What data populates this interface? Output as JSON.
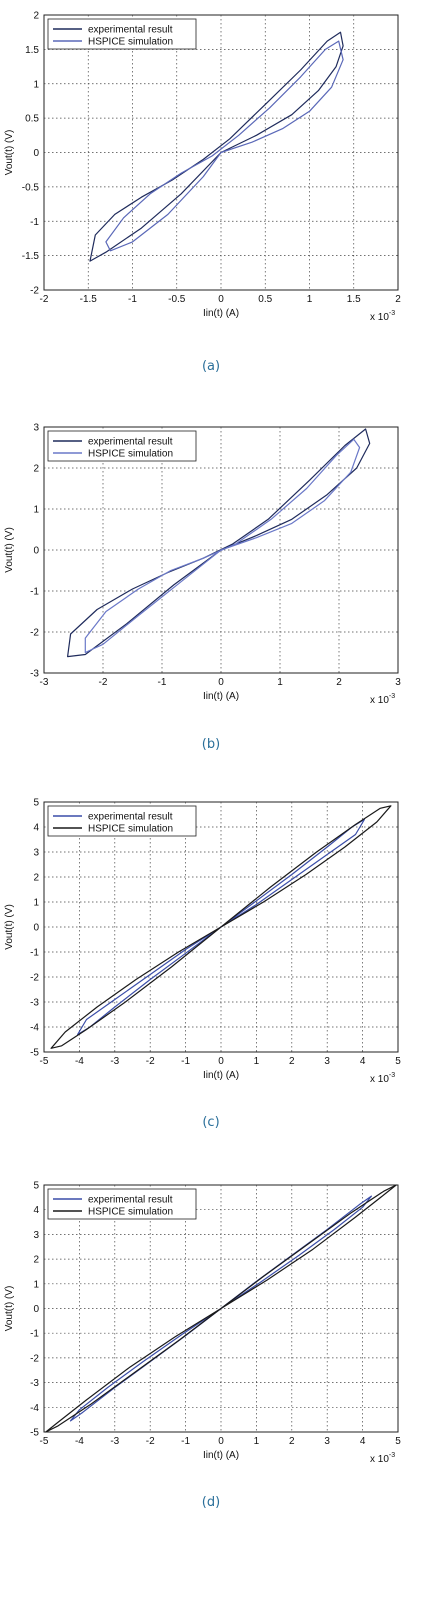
{
  "chart_data": [
    {
      "panel": "(a)",
      "type": "line",
      "xlabel": "Iin(t) (A)",
      "ylabel": "Vout(t) (V)",
      "x_multiplier": "x 10-3",
      "xlim": [
        -2,
        2
      ],
      "ylim": [
        -2,
        2
      ],
      "xticks": [
        -2,
        -1.5,
        -1,
        -0.5,
        0,
        0.5,
        1,
        1.5,
        2
      ],
      "yticks": [
        -2,
        -1.5,
        -1,
        -0.5,
        0,
        0.5,
        1,
        1.5,
        2
      ],
      "grid": true,
      "legend_position": "top-left",
      "series": [
        {
          "name": "experimental result",
          "color": "#1f2b5c",
          "points": [
            [
              0,
              0
            ],
            [
              0.4,
              0.25
            ],
            [
              0.8,
              0.55
            ],
            [
              1.1,
              0.9
            ],
            [
              1.3,
              1.25
            ],
            [
              1.38,
              1.55
            ],
            [
              1.35,
              1.75
            ],
            [
              1.2,
              1.62
            ],
            [
              0.9,
              1.2
            ],
            [
              0.5,
              0.7
            ],
            [
              0.1,
              0.2
            ],
            [
              -0.2,
              -0.1
            ],
            [
              -0.55,
              -0.4
            ],
            [
              -0.9,
              -0.65
            ],
            [
              -1.2,
              -0.9
            ],
            [
              -1.42,
              -1.2
            ],
            [
              -1.48,
              -1.58
            ],
            [
              -1.3,
              -1.45
            ],
            [
              -0.9,
              -1.1
            ],
            [
              -0.45,
              -0.6
            ],
            [
              0,
              0
            ]
          ]
        },
        {
          "name": "HSPICE simulation",
          "color": "#5a68b8",
          "points": [
            [
              0,
              0
            ],
            [
              0.35,
              0.15
            ],
            [
              0.7,
              0.35
            ],
            [
              1.0,
              0.6
            ],
            [
              1.25,
              0.95
            ],
            [
              1.38,
              1.35
            ],
            [
              1.33,
              1.62
            ],
            [
              1.18,
              1.5
            ],
            [
              0.9,
              1.1
            ],
            [
              0.55,
              0.65
            ],
            [
              0.2,
              0.25
            ],
            [
              -0.1,
              -0.05
            ],
            [
              -0.45,
              -0.3
            ],
            [
              -0.8,
              -0.6
            ],
            [
              -1.1,
              -0.95
            ],
            [
              -1.3,
              -1.3
            ],
            [
              -1.25,
              -1.43
            ],
            [
              -1.0,
              -1.3
            ],
            [
              -0.6,
              -0.9
            ],
            [
              -0.2,
              -0.35
            ],
            [
              0,
              0
            ]
          ]
        }
      ]
    },
    {
      "panel": "(b)",
      "type": "line",
      "xlabel": "Iin(t) (A)",
      "ylabel": "Vout(t) (V)",
      "x_multiplier": "x 10-3",
      "xlim": [
        -3,
        3
      ],
      "ylim": [
        -3,
        3
      ],
      "xticks": [
        -3,
        -2,
        -1,
        0,
        1,
        2,
        3
      ],
      "yticks": [
        -3,
        -2,
        -1,
        0,
        1,
        2,
        3
      ],
      "grid": true,
      "legend_position": "top-left",
      "series": [
        {
          "name": "experimental result",
          "color": "#1f2b5c",
          "points": [
            [
              0,
              0
            ],
            [
              0.6,
              0.35
            ],
            [
              1.2,
              0.75
            ],
            [
              1.8,
              1.35
            ],
            [
              2.3,
              2.0
            ],
            [
              2.52,
              2.6
            ],
            [
              2.45,
              2.95
            ],
            [
              2.1,
              2.55
            ],
            [
              1.5,
              1.7
            ],
            [
              0.8,
              0.75
            ],
            [
              0.2,
              0.15
            ],
            [
              -0.3,
              -0.2
            ],
            [
              -0.9,
              -0.55
            ],
            [
              -1.5,
              -0.95
            ],
            [
              -2.1,
              -1.45
            ],
            [
              -2.55,
              -2.05
            ],
            [
              -2.6,
              -2.6
            ],
            [
              -2.3,
              -2.55
            ],
            [
              -1.6,
              -1.8
            ],
            [
              -0.8,
              -0.85
            ],
            [
              0,
              0
            ]
          ]
        },
        {
          "name": "HSPICE simulation",
          "color": "#6a78c8",
          "points": [
            [
              0,
              0
            ],
            [
              0.6,
              0.3
            ],
            [
              1.2,
              0.65
            ],
            [
              1.75,
              1.2
            ],
            [
              2.2,
              1.9
            ],
            [
              2.35,
              2.5
            ],
            [
              2.25,
              2.7
            ],
            [
              1.95,
              2.3
            ],
            [
              1.45,
              1.5
            ],
            [
              0.85,
              0.75
            ],
            [
              0.25,
              0.15
            ],
            [
              -0.3,
              -0.2
            ],
            [
              -0.85,
              -0.5
            ],
            [
              -1.4,
              -0.95
            ],
            [
              -1.95,
              -1.5
            ],
            [
              -2.3,
              -2.15
            ],
            [
              -2.3,
              -2.5
            ],
            [
              -2.0,
              -2.3
            ],
            [
              -1.4,
              -1.6
            ],
            [
              -0.7,
              -0.8
            ],
            [
              0,
              0
            ]
          ]
        }
      ]
    },
    {
      "panel": "(c)",
      "type": "line",
      "xlabel": "Iin(t) (A)",
      "ylabel": "Vout(t) (V)",
      "x_multiplier": "x 10-3",
      "xlim": [
        -5,
        5
      ],
      "ylim": [
        -5,
        5
      ],
      "xticks": [
        -5,
        -4,
        -3,
        -2,
        -1,
        0,
        1,
        2,
        3,
        4,
        5
      ],
      "yticks": [
        -5,
        -4,
        -3,
        -2,
        -1,
        0,
        1,
        2,
        3,
        4,
        5
      ],
      "grid": true,
      "legend_position": "top-left",
      "series": [
        {
          "name": "experimental result",
          "color": "#3a4da8",
          "points": [
            [
              0,
              0
            ],
            [
              1.0,
              0.9
            ],
            [
              2.0,
              1.9
            ],
            [
              3.0,
              2.9
            ],
            [
              3.8,
              3.7
            ],
            [
              4.05,
              4.3
            ],
            [
              3.7,
              4.0
            ],
            [
              3.0,
              3.2
            ],
            [
              2.0,
              2.1
            ],
            [
              1.0,
              1.05
            ],
            [
              0,
              0
            ],
            [
              -1.0,
              -0.9
            ],
            [
              -2.0,
              -1.9
            ],
            [
              -3.0,
              -2.9
            ],
            [
              -3.8,
              -3.7
            ],
            [
              -4.05,
              -4.3
            ],
            [
              -3.7,
              -4.0
            ],
            [
              -3.0,
              -3.2
            ],
            [
              -2.0,
              -2.1
            ],
            [
              -1.0,
              -1.05
            ],
            [
              0,
              0
            ]
          ]
        },
        {
          "name": "HSPICE simulation",
          "color": "#1a1a1a",
          "points": [
            [
              0,
              0
            ],
            [
              1.2,
              1.0
            ],
            [
              2.4,
              2.1
            ],
            [
              3.5,
              3.2
            ],
            [
              4.4,
              4.2
            ],
            [
              4.8,
              4.85
            ],
            [
              4.5,
              4.75
            ],
            [
              3.8,
              4.1
            ],
            [
              2.7,
              3.0
            ],
            [
              1.4,
              1.6
            ],
            [
              0,
              0
            ],
            [
              -1.2,
              -1.0
            ],
            [
              -2.4,
              -2.1
            ],
            [
              -3.5,
              -3.2
            ],
            [
              -4.4,
              -4.2
            ],
            [
              -4.8,
              -4.85
            ],
            [
              -4.5,
              -4.75
            ],
            [
              -3.8,
              -4.1
            ],
            [
              -2.7,
              -3.0
            ],
            [
              -1.4,
              -1.6
            ],
            [
              0,
              0
            ]
          ]
        }
      ]
    },
    {
      "panel": "(d)",
      "type": "line",
      "xlabel": "Iin(t) (A)",
      "ylabel": "Vout(t) (V)",
      "x_multiplier": "x 10-3",
      "xlim": [
        -5,
        5
      ],
      "ylim": [
        -5,
        5
      ],
      "xticks": [
        -5,
        -4,
        -3,
        -2,
        -1,
        0,
        1,
        2,
        3,
        4,
        5
      ],
      "yticks": [
        -5,
        -4,
        -3,
        -2,
        -1,
        0,
        1,
        2,
        3,
        4,
        5
      ],
      "grid": true,
      "legend_position": "top-left",
      "series": [
        {
          "name": "experimental result",
          "color": "#3a4da8",
          "points": [
            [
              0,
              0
            ],
            [
              1.1,
              1.05
            ],
            [
              2.2,
              2.15
            ],
            [
              3.2,
              3.2
            ],
            [
              4.0,
              4.1
            ],
            [
              4.25,
              4.55
            ],
            [
              3.9,
              4.2
            ],
            [
              3.0,
              3.2
            ],
            [
              2.0,
              2.15
            ],
            [
              1.0,
              1.1
            ],
            [
              0,
              0
            ],
            [
              -1.1,
              -1.05
            ],
            [
              -2.2,
              -2.15
            ],
            [
              -3.2,
              -3.2
            ],
            [
              -4.0,
              -4.1
            ],
            [
              -4.25,
              -4.55
            ],
            [
              -3.9,
              -4.2
            ],
            [
              -3.0,
              -3.2
            ],
            [
              -2.0,
              -2.15
            ],
            [
              -1.0,
              -1.1
            ],
            [
              0,
              0
            ]
          ]
        },
        {
          "name": "HSPICE simulation",
          "color": "#1a1a1a",
          "points": [
            [
              0,
              0
            ],
            [
              1.3,
              1.15
            ],
            [
              2.6,
              2.4
            ],
            [
              3.8,
              3.7
            ],
            [
              4.6,
              4.6
            ],
            [
              4.95,
              5.0
            ],
            [
              4.6,
              4.75
            ],
            [
              3.7,
              3.9
            ],
            [
              2.5,
              2.65
            ],
            [
              1.2,
              1.3
            ],
            [
              0,
              0
            ],
            [
              -1.3,
              -1.15
            ],
            [
              -2.6,
              -2.4
            ],
            [
              -3.8,
              -3.7
            ],
            [
              -4.6,
              -4.6
            ],
            [
              -4.95,
              -5.0
            ],
            [
              -4.6,
              -4.75
            ],
            [
              -3.7,
              -3.9
            ],
            [
              -2.5,
              -2.65
            ],
            [
              -1.2,
              -1.3
            ],
            [
              0,
              0
            ]
          ]
        }
      ]
    }
  ]
}
